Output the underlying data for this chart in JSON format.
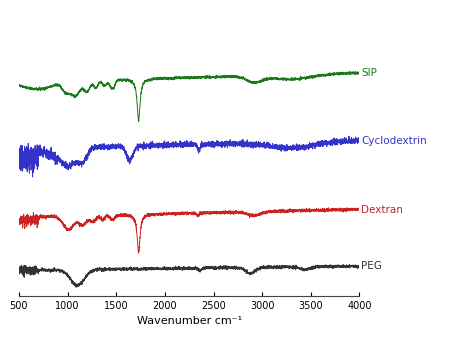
{
  "x_min": 500,
  "x_max": 4000,
  "xticks": [
    500,
    1000,
    1500,
    2000,
    2500,
    3000,
    3500,
    4000
  ],
  "xlabel": "Wavenumber cm⁻¹",
  "colors": {
    "SIP": "#1a7a1a",
    "Cyclodextrin": "#3333cc",
    "Dextran": "#cc2222",
    "PEG": "#333333"
  },
  "labels": {
    "SIP": "SIP",
    "Cyclodextrin": "Cyclodextrin",
    "Dextran": "Dextran",
    "PEG": "PEG"
  },
  "offsets": {
    "SIP": 0.9,
    "Cyclodextrin": 0.6,
    "Dextran": 0.3,
    "PEG": 0.05
  },
  "background_color": "#ffffff"
}
